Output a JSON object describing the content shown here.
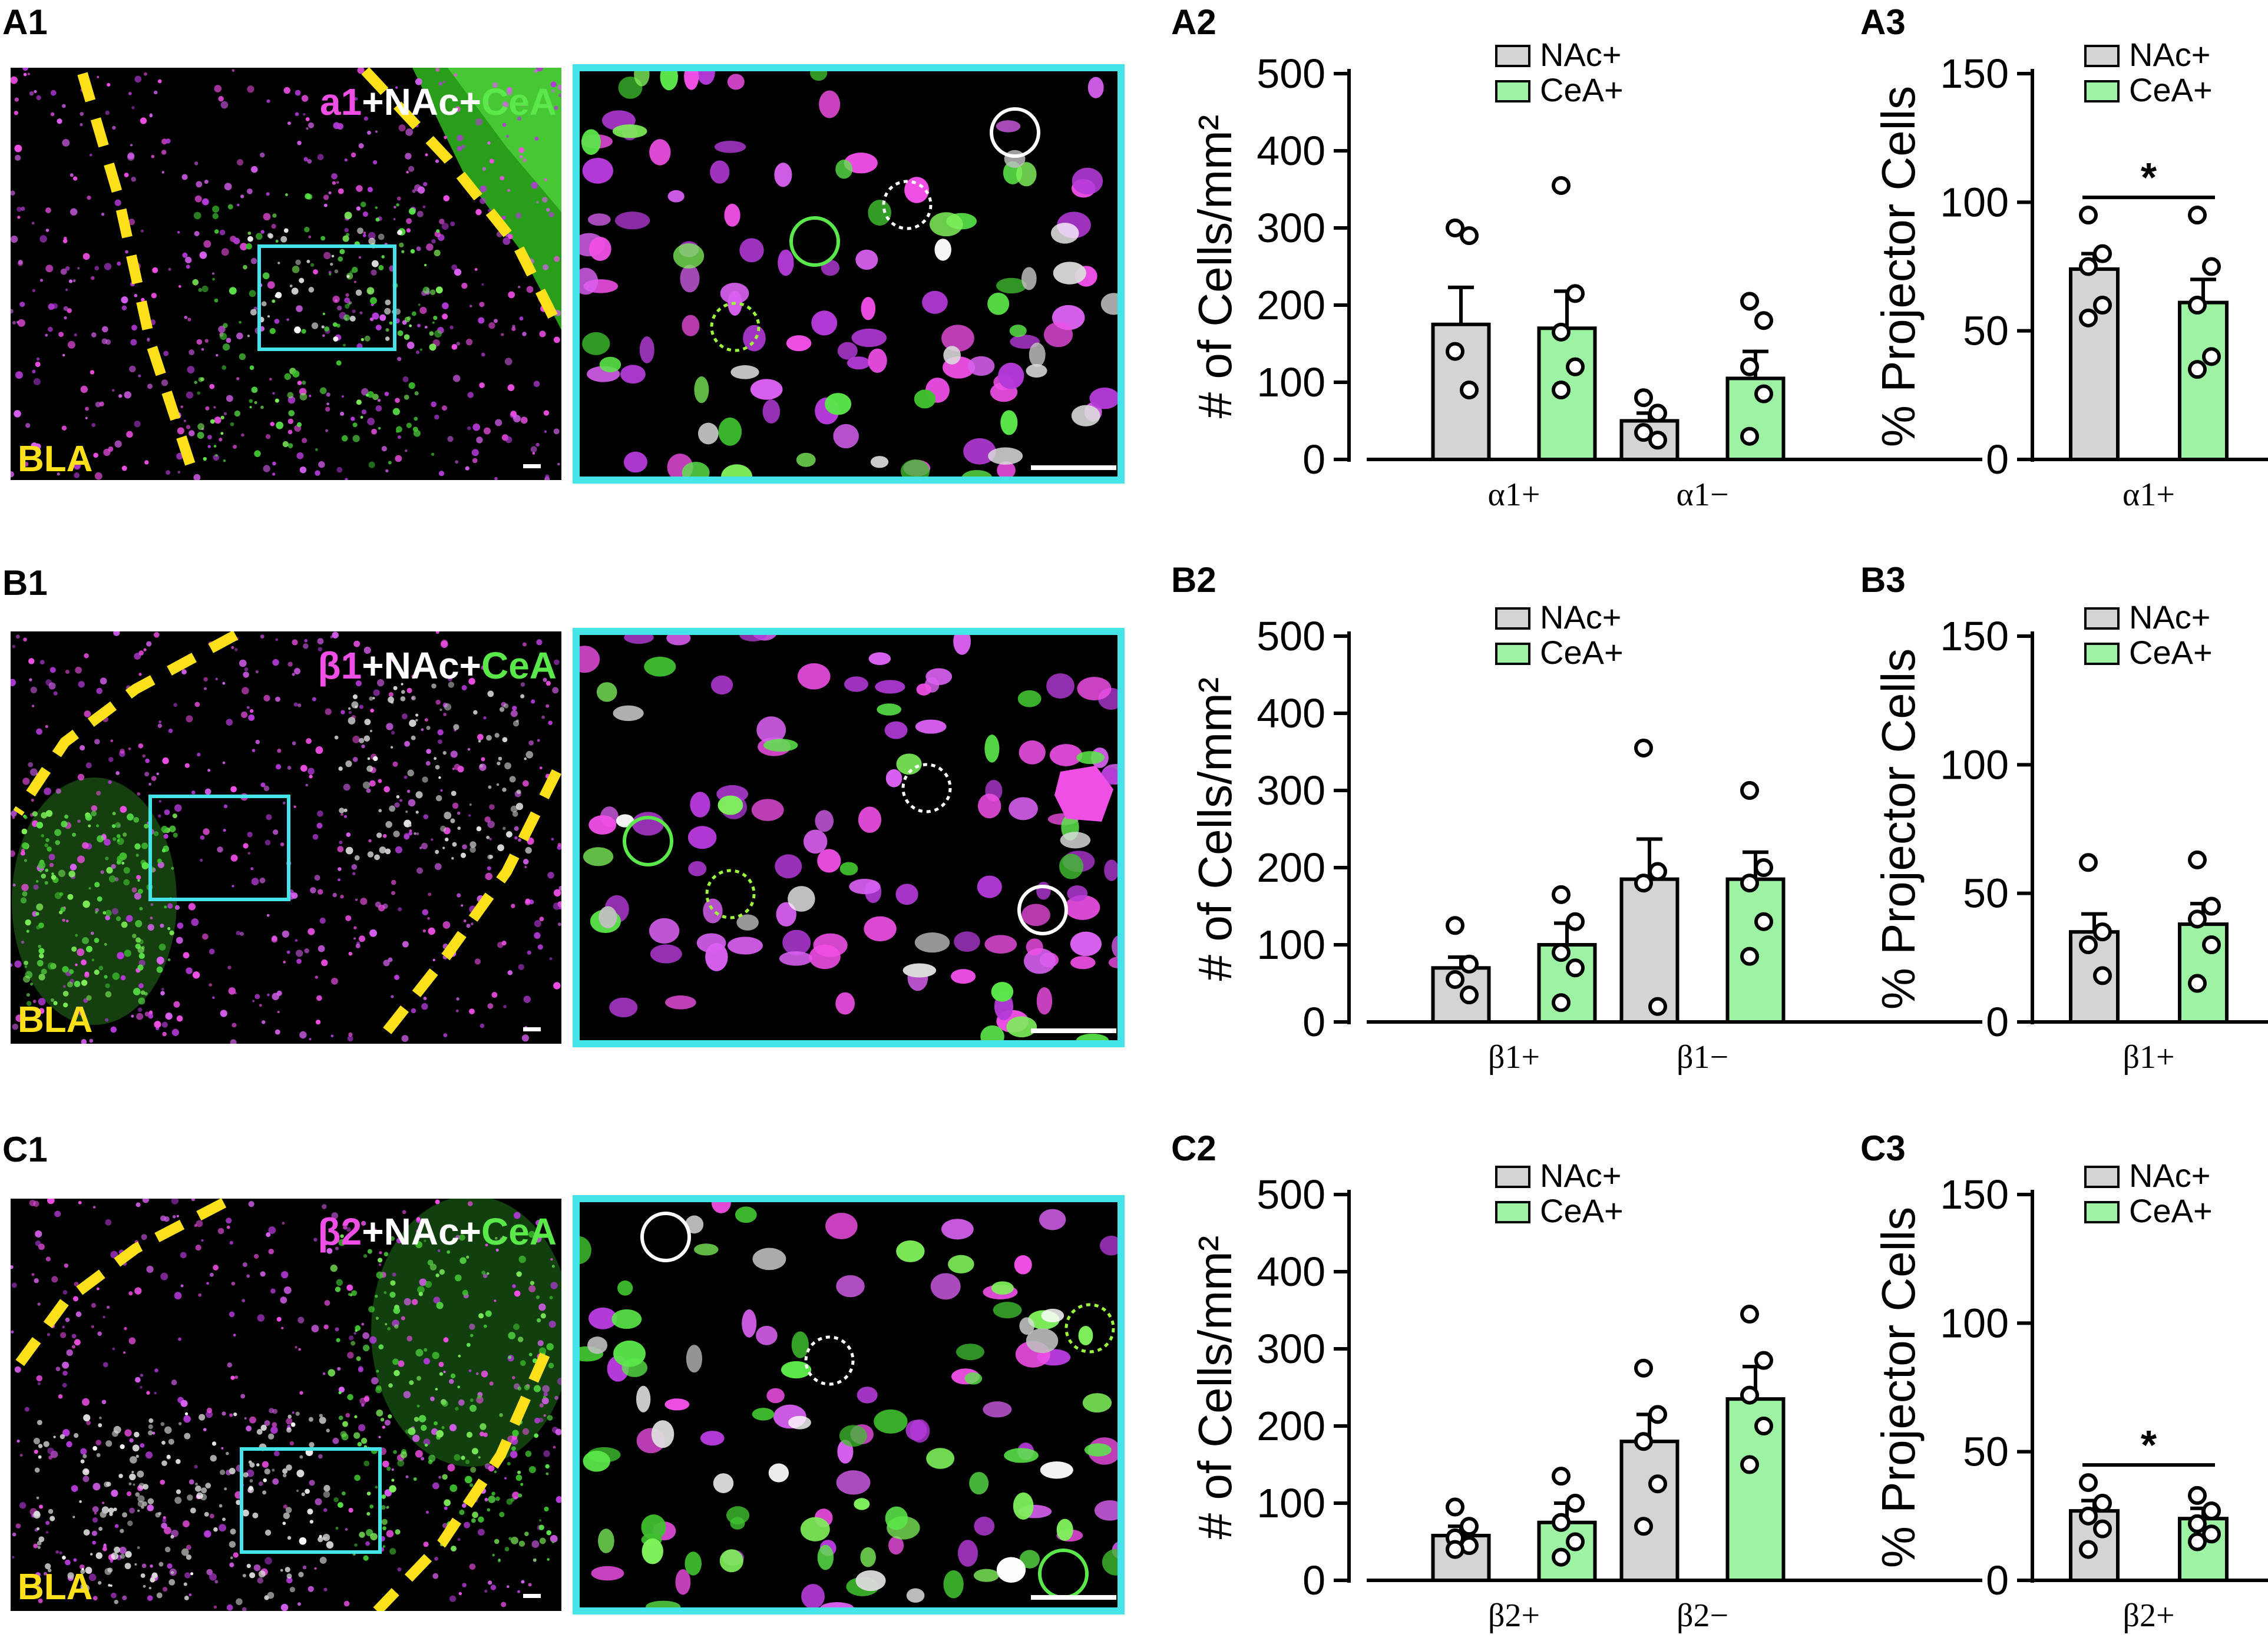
{
  "colors": {
    "nac": "#d4d4d4",
    "cea": "#9df3a3",
    "magenta": "#f04fe6",
    "green": "#5be84a",
    "white": "#ffffff",
    "yellow": "#ffe11b",
    "cyan": "#45e4e8"
  },
  "rows": [
    {
      "panel_label_1": "A1",
      "micro": {
        "title": {
          "receptor": "a1",
          "nac": "+NAc+",
          "cea": "CeA"
        },
        "region": "BLA"
      },
      "bar_chart": {
        "panel_label": "A2",
        "ylabel": "# of Cells/mm²",
        "yticks": [
          "500",
          "400",
          "300",
          "200",
          "100",
          "0"
        ],
        "legend": [
          "NAc+",
          "CeA+"
        ],
        "categories": [
          "α1+",
          "α1−"
        ]
      },
      "pct_chart": {
        "panel_label": "A3",
        "ylabel": "% Projector Cells",
        "yticks": [
          "150",
          "100",
          "50",
          "0"
        ],
        "legend": [
          "NAc+",
          "CeA+"
        ],
        "category": "α1+",
        "sig": "*"
      }
    },
    {
      "panel_label_1": "B1",
      "micro": {
        "title": {
          "receptor": "β1",
          "nac": "+NAc+",
          "cea": "CeA"
        },
        "region": "BLA"
      },
      "bar_chart": {
        "panel_label": "B2",
        "ylabel": "# of Cells/mm²",
        "yticks": [
          "500",
          "400",
          "300",
          "200",
          "100",
          "0"
        ],
        "legend": [
          "NAc+",
          "CeA+"
        ],
        "categories": [
          "β1+",
          "β1−"
        ]
      },
      "pct_chart": {
        "panel_label": "B3",
        "ylabel": "% Projector Cells",
        "yticks": [
          "150",
          "100",
          "50",
          "0"
        ],
        "legend": [
          "NAc+",
          "CeA+"
        ],
        "category": "β1+",
        "sig": ""
      }
    },
    {
      "panel_label_1": "C1",
      "micro": {
        "title": {
          "receptor": "β2",
          "nac": "+NAc+",
          "cea": "CeA"
        },
        "region": "BLA"
      },
      "bar_chart": {
        "panel_label": "C2",
        "ylabel": "# of Cells/mm²",
        "yticks": [
          "500",
          "400",
          "300",
          "200",
          "100",
          "0"
        ],
        "legend": [
          "NAc+",
          "CeA+"
        ],
        "categories": [
          "β2+",
          "β2−"
        ]
      },
      "pct_chart": {
        "panel_label": "C3",
        "ylabel": "% Projector Cells",
        "yticks": [
          "150",
          "100",
          "50",
          "0"
        ],
        "legend": [
          "NAc+",
          "CeA+"
        ],
        "category": "β2+",
        "sig": "*"
      }
    }
  ],
  "chart_data": [
    {
      "type": "bar",
      "panel": "A2",
      "ylabel": "# of Cells/mm²",
      "ylim": [
        0,
        500
      ],
      "categories": [
        "α1+",
        "α1−"
      ],
      "series": [
        {
          "name": "NAc+",
          "values": [
            175,
            50
          ],
          "sem": [
            48,
            10
          ],
          "points": [
            [
              300,
              290,
              140,
              90
            ],
            [
              80,
              60,
              35,
              25
            ]
          ]
        },
        {
          "name": "CeA+",
          "values": [
            170,
            105
          ],
          "sem": [
            48,
            35
          ],
          "points": [
            [
              355,
              215,
              165,
              120,
              90
            ],
            [
              205,
              180,
              120,
              85,
              30
            ]
          ]
        }
      ]
    },
    {
      "type": "bar",
      "panel": "A3",
      "ylabel": "% Projector Cells",
      "ylim": [
        0,
        150
      ],
      "categories": [
        "α1+"
      ],
      "significance": "*",
      "series": [
        {
          "name": "NAc+",
          "values": [
            74
          ],
          "sem": [
            6
          ],
          "points": [
            [
              95,
              80,
              75,
              60,
              55
            ]
          ]
        },
        {
          "name": "CeA+",
          "values": [
            61
          ],
          "sem": [
            9
          ],
          "points": [
            [
              95,
              75,
              60,
              40,
              35
            ]
          ]
        }
      ]
    },
    {
      "type": "bar",
      "panel": "B2",
      "ylabel": "# of Cells/mm²",
      "ylim": [
        0,
        500
      ],
      "categories": [
        "β1+",
        "β1−"
      ],
      "series": [
        {
          "name": "NAc+",
          "values": [
            70,
            185
          ],
          "sem": [
            14,
            52
          ],
          "points": [
            [
              125,
              75,
              55,
              35
            ],
            [
              355,
              195,
              180,
              20
            ]
          ]
        },
        {
          "name": "CeA+",
          "values": [
            100,
            185
          ],
          "sem": [
            28,
            35
          ],
          "points": [
            [
              165,
              130,
              90,
              70,
              25
            ],
            [
              300,
              200,
              180,
              130,
              85
            ]
          ]
        }
      ]
    },
    {
      "type": "bar",
      "panel": "B3",
      "ylabel": "% Projector Cells",
      "ylim": [
        0,
        150
      ],
      "categories": [
        "β1+"
      ],
      "series": [
        {
          "name": "NAc+",
          "values": [
            35
          ],
          "sem": [
            7
          ],
          "points": [
            [
              62,
              35,
              30,
              18
            ]
          ]
        },
        {
          "name": "CeA+",
          "values": [
            38
          ],
          "sem": [
            8
          ],
          "points": [
            [
              63,
              45,
              40,
              30,
              15
            ]
          ]
        }
      ]
    },
    {
      "type": "bar",
      "panel": "C2",
      "ylabel": "# of Cells/mm²",
      "ylim": [
        0,
        500
      ],
      "categories": [
        "β2+",
        "β2−"
      ],
      "series": [
        {
          "name": "NAc+",
          "values": [
            58,
            180
          ],
          "sem": [
            12,
            35
          ],
          "points": [
            [
              95,
              70,
              55,
              45,
              40
            ],
            [
              275,
              215,
              180,
              125,
              70
            ]
          ]
        },
        {
          "name": "CeA+",
          "values": [
            75,
            235
          ],
          "sem": [
            25,
            42
          ],
          "points": [
            [
              135,
              100,
              75,
              50,
              30
            ],
            [
              345,
              285,
              240,
              200,
              150
            ]
          ]
        }
      ]
    },
    {
      "type": "bar",
      "panel": "C3",
      "ylabel": "% Projector Cells",
      "ylim": [
        0,
        150
      ],
      "categories": [
        "β2+"
      ],
      "significance": "*",
      "series": [
        {
          "name": "NAc+",
          "values": [
            27
          ],
          "sem": [
            4
          ],
          "points": [
            [
              38,
              30,
              25,
              20,
              12
            ]
          ]
        },
        {
          "name": "CeA+",
          "values": [
            24
          ],
          "sem": [
            4
          ],
          "points": [
            [
              33,
              27,
              22,
              18,
              15
            ]
          ]
        }
      ]
    }
  ]
}
